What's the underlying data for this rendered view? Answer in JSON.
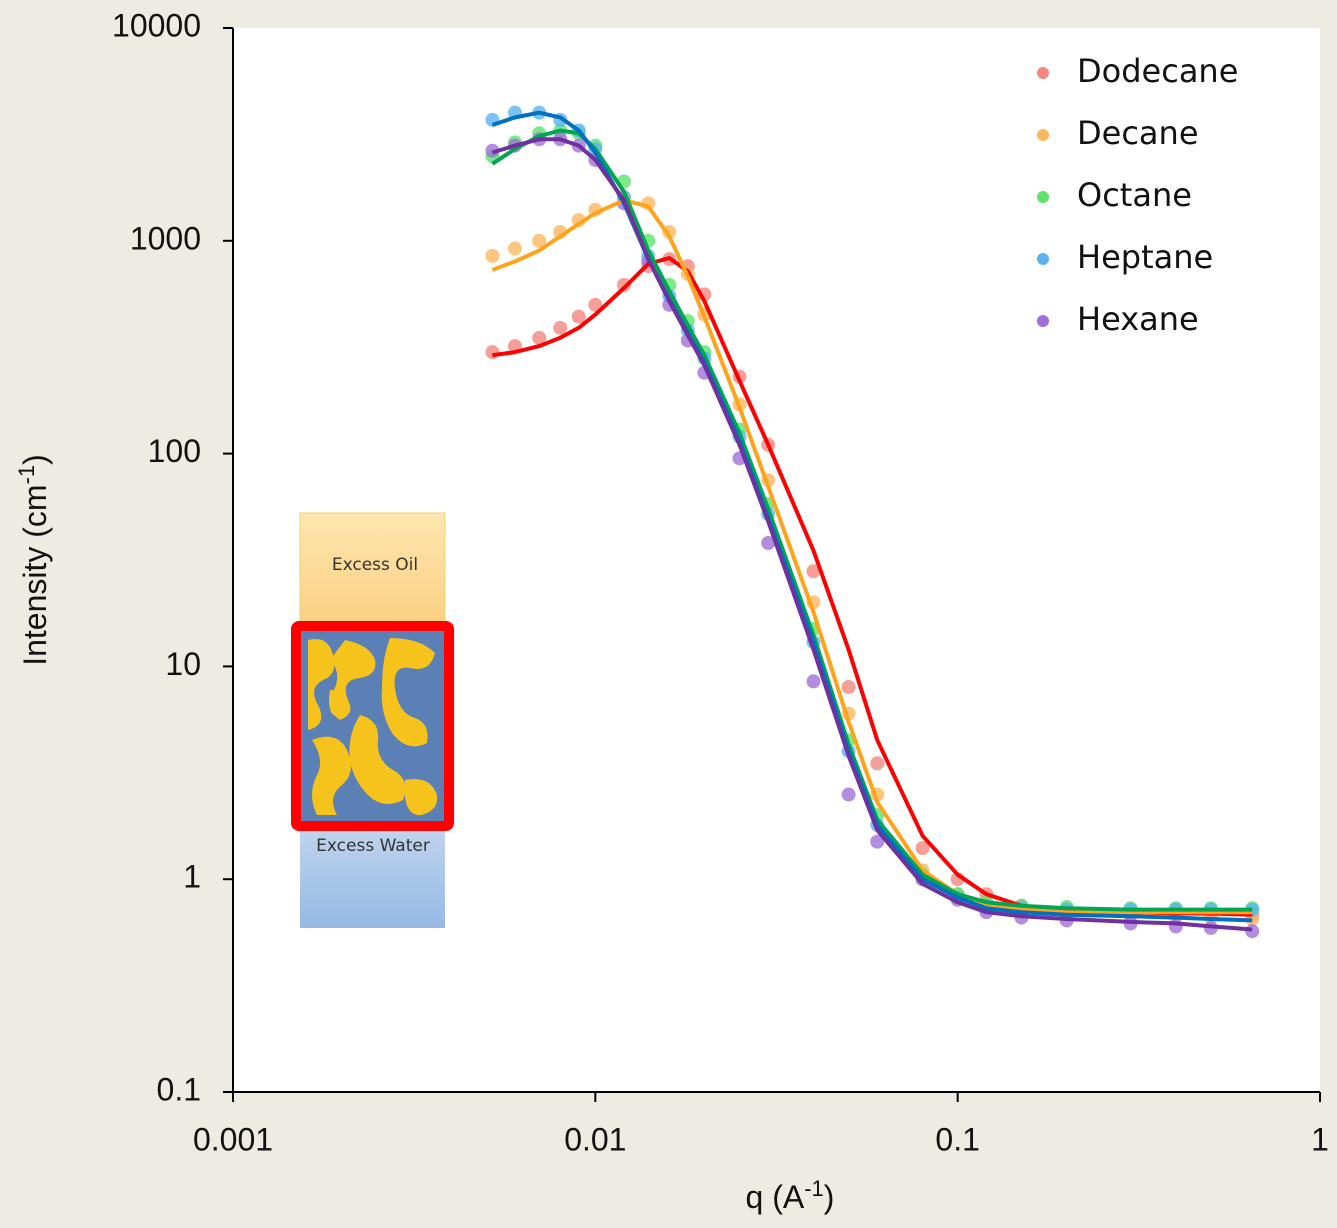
{
  "chart_data": {
    "type": "scatter",
    "xlabel": [
      "q (A",
      "-1",
      ")"
    ],
    "ylabel": [
      "Intensity (cm",
      "-1",
      ")"
    ],
    "log_x": true,
    "log_y": true,
    "xlim": [
      0.001,
      1
    ],
    "xticks": [
      0.001,
      0.01,
      0.1,
      1
    ],
    "ylim": [
      0.1,
      10000
    ],
    "yticks": [
      0.1,
      1,
      10,
      100,
      1000,
      10000
    ],
    "legend": "upper right",
    "annotations": [
      "Excess Oil",
      "Excess Water"
    ],
    "x": [
      0.0052,
      0.006,
      0.007,
      0.008,
      0.009,
      0.01,
      0.012,
      0.014,
      0.016,
      0.018,
      0.02,
      0.025,
      0.03,
      0.04,
      0.05,
      0.06,
      0.08,
      0.1,
      0.12,
      0.15,
      0.2,
      0.3,
      0.4,
      0.5,
      0.65
    ],
    "series": [
      {
        "name": "Dodecane",
        "color": "#f4877f",
        "fit_color": "#ff0000",
        "values": [
          300,
          320,
          350,
          390,
          440,
          500,
          620,
          760,
          820,
          760,
          560,
          230,
          110,
          28,
          8,
          3.5,
          1.4,
          1.0,
          0.85,
          0.75,
          0.72,
          0.7,
          0.7,
          0.69,
          0.68
        ],
        "fit": [
          290,
          300,
          320,
          350,
          390,
          450,
          600,
          780,
          830,
          720,
          520,
          220,
          110,
          35,
          12,
          4.5,
          1.6,
          1.05,
          0.85,
          0.75,
          0.72,
          0.7,
          0.69,
          0.69,
          0.68
        ]
      },
      {
        "name": "Decane",
        "color": "#fcb860",
        "fit_color": "#ffa31a",
        "values": [
          850,
          920,
          1000,
          1100,
          1250,
          1400,
          1600,
          1500,
          1100,
          700,
          450,
          170,
          75,
          20,
          6,
          2.5,
          1.1,
          0.85,
          0.75,
          0.7,
          0.68,
          0.67,
          0.66,
          0.66,
          0.65
        ],
        "fit": [
          730,
          800,
          900,
          1050,
          1200,
          1350,
          1550,
          1450,
          1050,
          680,
          440,
          165,
          70,
          18,
          5.5,
          2.3,
          1.1,
          0.85,
          0.75,
          0.72,
          0.7,
          0.7,
          0.7,
          0.7,
          0.7
        ]
      },
      {
        "name": "Octane",
        "color": "#5de36b",
        "fit_color": "#00a651",
        "values": [
          2500,
          2900,
          3200,
          3300,
          3200,
          2800,
          1900,
          1000,
          620,
          420,
          300,
          130,
          58,
          15,
          4.5,
          2.0,
          1.05,
          0.85,
          0.78,
          0.75,
          0.74,
          0.73,
          0.73,
          0.73,
          0.73
        ],
        "fit": [
          2300,
          2700,
          3100,
          3300,
          3200,
          2700,
          1700,
          900,
          580,
          400,
          290,
          125,
          55,
          14,
          4.3,
          1.9,
          1.05,
          0.85,
          0.78,
          0.75,
          0.73,
          0.72,
          0.72,
          0.72,
          0.72
        ]
      },
      {
        "name": "Heptane",
        "color": "#5ab4f0",
        "fit_color": "#0070c0",
        "values": [
          3700,
          4000,
          4000,
          3700,
          3300,
          2700,
          1600,
          850,
          550,
          380,
          280,
          120,
          52,
          13,
          4,
          1.8,
          1.0,
          0.82,
          0.75,
          0.73,
          0.72,
          0.72,
          0.72,
          0.72,
          0.72
        ],
        "fit": [
          3500,
          3800,
          4000,
          3800,
          3300,
          2600,
          1500,
          820,
          530,
          370,
          270,
          115,
          50,
          13,
          4,
          1.8,
          1.0,
          0.82,
          0.73,
          0.7,
          0.68,
          0.67,
          0.66,
          0.65,
          0.64
        ]
      },
      {
        "name": "Hexane",
        "color": "#a070d8",
        "fit_color": "#7030a0",
        "values": [
          2650,
          2800,
          3000,
          3000,
          2800,
          2400,
          1500,
          800,
          500,
          340,
          240,
          95,
          38,
          8.5,
          2.5,
          1.5,
          1.0,
          0.8,
          0.7,
          0.66,
          0.64,
          0.62,
          0.6,
          0.59,
          0.57
        ],
        "fit": [
          2600,
          2800,
          3000,
          3000,
          2800,
          2400,
          1550,
          820,
          520,
          360,
          260,
          110,
          48,
          12,
          3.8,
          1.7,
          0.95,
          0.78,
          0.7,
          0.67,
          0.65,
          0.63,
          0.62,
          0.6,
          0.58
        ]
      }
    ]
  }
}
